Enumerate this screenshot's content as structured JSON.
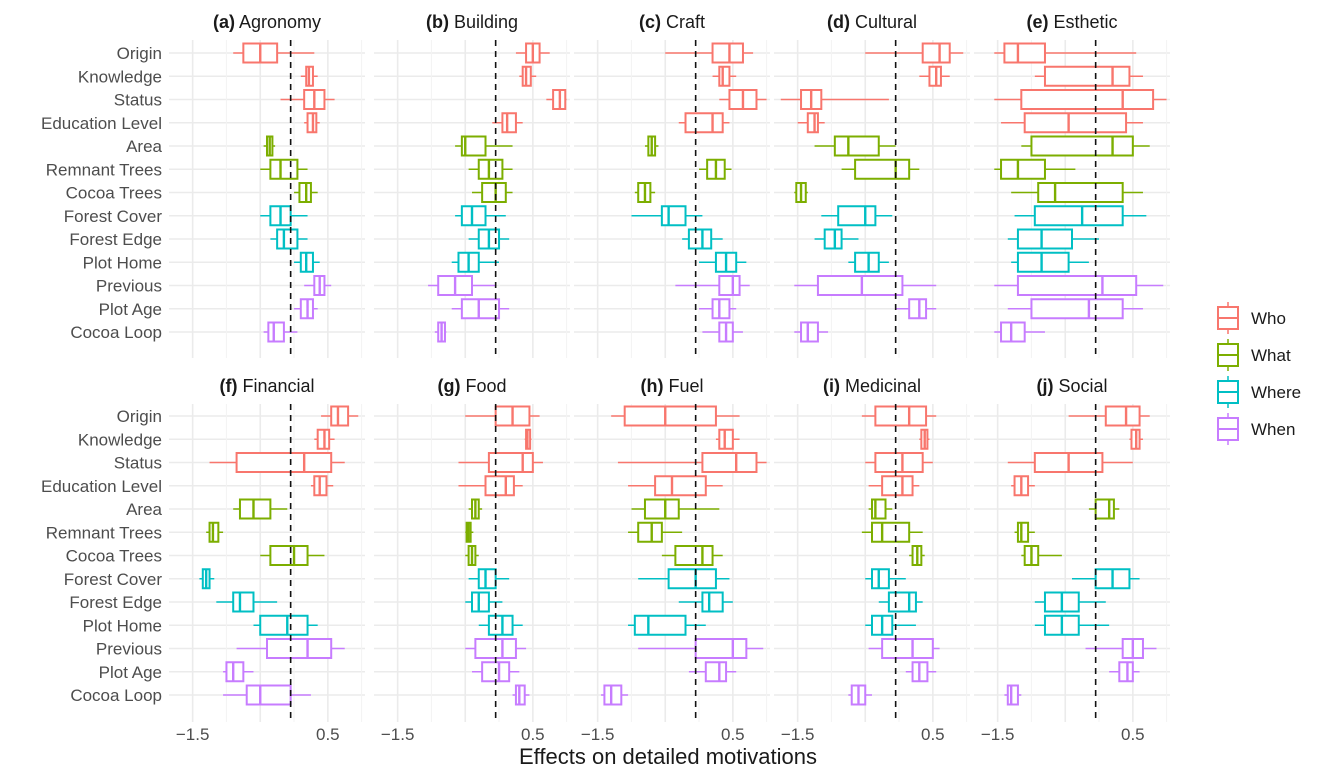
{
  "chart_data": {
    "type": "boxplot",
    "xlabel": "Effects on detailed motivations",
    "x_ticks": [
      "-1.5",
      "0.5"
    ],
    "xlim": [
      -1.85,
      1.05
    ],
    "reference_line_x": -0.05,
    "variables": [
      "Origin",
      "Knowledge",
      "Status",
      "Education Level",
      "Area",
      "Remnant Trees",
      "Cocoa Trees",
      "Forest Cover",
      "Forest Edge",
      "Plot Home",
      "Previous",
      "Plot Age",
      "Cocoa Loop"
    ],
    "groups": [
      {
        "name": "Who",
        "color": "#F8766D"
      },
      {
        "name": "What",
        "color": "#7CAE00"
      },
      {
        "name": "Where",
        "color": "#00BFC4"
      },
      {
        "name": "When",
        "color": "#C77CFF"
      }
    ],
    "variable_group": [
      "Who",
      "Who",
      "Who",
      "Who",
      "What",
      "What",
      "What",
      "Where",
      "Where",
      "Where",
      "When",
      "When",
      "When"
    ],
    "box_fields": [
      "whisker_low",
      "q1",
      "median",
      "q3",
      "whisker_high"
    ],
    "panels": [
      {
        "tag": "(a)",
        "name": "Agronomy",
        "boxes": [
          [
            -0.9,
            -0.75,
            -0.5,
            -0.25,
            0.3
          ],
          [
            0.1,
            0.18,
            0.22,
            0.28,
            0.35
          ],
          [
            -0.2,
            0.15,
            0.3,
            0.45,
            0.6
          ],
          [
            0.15,
            0.2,
            0.28,
            0.33,
            0.38
          ],
          [
            -0.45,
            -0.4,
            -0.36,
            -0.32,
            -0.28
          ],
          [
            -0.5,
            -0.35,
            -0.2,
            0.05,
            0.2
          ],
          [
            0.0,
            0.08,
            0.18,
            0.25,
            0.35
          ],
          [
            -0.5,
            -0.35,
            -0.2,
            -0.05,
            0.2
          ],
          [
            -0.35,
            -0.25,
            -0.15,
            0.05,
            0.2
          ],
          [
            0.0,
            0.1,
            0.18,
            0.28,
            0.38
          ],
          [
            0.15,
            0.3,
            0.38,
            0.45,
            0.55
          ],
          [
            0.0,
            0.1,
            0.2,
            0.28,
            0.35
          ],
          [
            -0.45,
            -0.38,
            -0.3,
            -0.15,
            0.05
          ]
        ]
      },
      {
        "tag": "(b)",
        "name": "Building",
        "boxes": [
          [
            0.25,
            0.4,
            0.5,
            0.6,
            0.75
          ],
          [
            0.3,
            0.35,
            0.4,
            0.47,
            0.55
          ],
          [
            0.7,
            0.8,
            0.9,
            0.98,
            1.0
          ],
          [
            -0.1,
            0.05,
            0.12,
            0.25,
            0.35
          ],
          [
            -0.65,
            -0.55,
            -0.5,
            -0.2,
            0.2
          ],
          [
            -0.45,
            -0.3,
            -0.15,
            0.05,
            0.2
          ],
          [
            -0.4,
            -0.25,
            -0.05,
            0.1,
            0.2
          ],
          [
            -0.65,
            -0.55,
            -0.4,
            -0.2,
            0.1
          ],
          [
            -0.45,
            -0.3,
            -0.15,
            0.0,
            0.15
          ],
          [
            -0.7,
            -0.6,
            -0.45,
            -0.3,
            0.0
          ],
          [
            -1.05,
            -0.9,
            -0.65,
            -0.4,
            -0.05
          ],
          [
            -0.7,
            -0.55,
            -0.3,
            0.0,
            0.15
          ],
          [
            -0.95,
            -0.9,
            -0.85,
            -0.8,
            -0.78
          ]
        ]
      },
      {
        "tag": "(c)",
        "name": "Craft",
        "boxes": [
          [
            -0.5,
            0.2,
            0.45,
            0.65,
            0.8
          ],
          [
            0.2,
            0.3,
            0.35,
            0.45,
            0.55
          ],
          [
            0.3,
            0.45,
            0.65,
            0.85,
            1.0
          ],
          [
            -0.3,
            -0.2,
            0.2,
            0.35,
            0.45
          ],
          [
            -0.8,
            -0.75,
            -0.7,
            -0.65,
            -0.6
          ],
          [
            0.0,
            0.12,
            0.25,
            0.38,
            0.48
          ],
          [
            -0.95,
            -0.9,
            -0.8,
            -0.72,
            -0.65
          ],
          [
            -1.0,
            -0.55,
            -0.45,
            -0.2,
            0.05
          ],
          [
            -0.25,
            -0.15,
            0.05,
            0.18,
            0.35
          ],
          [
            0.0,
            0.25,
            0.4,
            0.55,
            0.7
          ],
          [
            -0.35,
            0.3,
            0.5,
            0.6,
            0.75
          ],
          [
            0.0,
            0.2,
            0.3,
            0.45,
            0.55
          ],
          [
            0.05,
            0.3,
            0.4,
            0.5,
            0.65
          ]
        ]
      },
      {
        "tag": "(d)",
        "name": "Cultural",
        "boxes": [
          [
            -0.5,
            0.35,
            0.6,
            0.75,
            0.95
          ],
          [
            0.3,
            0.45,
            0.55,
            0.62,
            0.75
          ],
          [
            -1.75,
            -1.45,
            -1.3,
            -1.15,
            -0.15
          ],
          [
            -1.5,
            -1.35,
            -1.25,
            -1.2,
            -1.1
          ],
          [
            -1.25,
            -0.95,
            -0.75,
            -0.3,
            -0.05
          ],
          [
            -0.85,
            -0.65,
            -0.05,
            0.15,
            0.3
          ],
          [
            -1.55,
            -1.52,
            -1.45,
            -1.38,
            -1.35
          ],
          [
            -1.15,
            -0.9,
            -0.5,
            -0.35,
            -0.1
          ],
          [
            -1.25,
            -1.1,
            -0.95,
            -0.85,
            -0.6
          ],
          [
            -0.75,
            -0.65,
            -0.45,
            -0.3,
            -0.15
          ],
          [
            -1.55,
            -1.2,
            -0.55,
            0.05,
            0.55
          ],
          [
            -0.05,
            0.15,
            0.3,
            0.4,
            0.55
          ],
          [
            -1.55,
            -1.45,
            -1.35,
            -1.2,
            -1.05
          ]
        ]
      },
      {
        "tag": "(e)",
        "name": "Esthetic",
        "boxes": [
          [
            -1.55,
            -1.4,
            -1.2,
            -0.8,
            0.55
          ],
          [
            -0.95,
            -0.8,
            0.2,
            0.45,
            0.65
          ],
          [
            -1.55,
            -1.15,
            0.35,
            0.8,
            1.0
          ],
          [
            -1.45,
            -1.1,
            -0.45,
            0.4,
            0.65
          ],
          [
            -1.15,
            -1.0,
            0.2,
            0.5,
            0.75
          ],
          [
            -1.55,
            -1.45,
            -1.2,
            -0.8,
            -0.35
          ],
          [
            -1.3,
            -0.9,
            -0.65,
            0.35,
            0.65
          ],
          [
            -1.25,
            -0.95,
            -0.25,
            0.35,
            0.7
          ],
          [
            -1.35,
            -1.2,
            -0.85,
            -0.4,
            0.0
          ],
          [
            -1.3,
            -1.2,
            -0.85,
            -0.45,
            -0.15
          ],
          [
            -1.55,
            -1.2,
            0.05,
            0.55,
            0.95
          ],
          [
            -1.35,
            -1.0,
            -0.15,
            0.35,
            0.65
          ],
          [
            -1.55,
            -1.45,
            -1.3,
            -1.1,
            -0.8
          ]
        ]
      },
      {
        "tag": "(f)",
        "name": "Financial",
        "boxes": [
          [
            0.4,
            0.55,
            0.65,
            0.8,
            0.95
          ],
          [
            0.3,
            0.35,
            0.45,
            0.52,
            0.6
          ],
          [
            -1.25,
            -0.85,
            0.15,
            0.55,
            0.75
          ],
          [
            0.25,
            0.3,
            0.38,
            0.48,
            0.58
          ],
          [
            -0.9,
            -0.8,
            -0.6,
            -0.35,
            -0.1
          ],
          [
            -1.3,
            -1.25,
            -1.2,
            -1.12,
            -1.05
          ],
          [
            -0.5,
            -0.35,
            0.0,
            0.2,
            0.45
          ],
          [
            -1.4,
            -1.35,
            -1.3,
            -1.25,
            -1.18
          ],
          [
            -1.15,
            -0.9,
            -0.8,
            -0.6,
            -0.25
          ],
          [
            -0.6,
            -0.5,
            -0.1,
            0.2,
            0.35
          ],
          [
            -0.85,
            -0.4,
            0.2,
            0.55,
            0.75
          ],
          [
            -1.05,
            -1.0,
            -0.9,
            -0.75,
            -0.6
          ],
          [
            -1.05,
            -0.7,
            -0.5,
            -0.05,
            0.25
          ]
        ]
      },
      {
        "tag": "(g)",
        "name": "Food",
        "boxes": [
          [
            -0.5,
            -0.05,
            0.2,
            0.45,
            0.6
          ],
          [
            0.38,
            0.4,
            0.42,
            0.46,
            0.48
          ],
          [
            -0.6,
            -0.15,
            0.35,
            0.5,
            0.65
          ],
          [
            -0.6,
            -0.2,
            0.1,
            0.22,
            0.35
          ],
          [
            -0.45,
            -0.4,
            -0.35,
            -0.3,
            -0.25
          ],
          [
            -0.5,
            -0.48,
            -0.45,
            -0.42,
            -0.38
          ],
          [
            -0.5,
            -0.45,
            -0.4,
            -0.35,
            -0.3
          ],
          [
            -0.45,
            -0.3,
            -0.2,
            -0.05,
            0.15
          ],
          [
            -0.5,
            -0.4,
            -0.3,
            -0.15,
            0.05
          ],
          [
            -0.3,
            -0.15,
            0.05,
            0.2,
            0.35
          ],
          [
            -0.5,
            -0.35,
            0.05,
            0.25,
            0.4
          ],
          [
            -0.4,
            -0.25,
            0.0,
            0.15,
            0.3
          ],
          [
            0.2,
            0.25,
            0.3,
            0.38,
            0.45
          ]
        ]
      },
      {
        "tag": "(h)",
        "name": "Fuel",
        "boxes": [
          [
            -1.3,
            -1.1,
            -0.5,
            0.25,
            0.6
          ],
          [
            0.25,
            0.3,
            0.38,
            0.5,
            0.6
          ],
          [
            -1.2,
            0.05,
            0.55,
            0.85,
            1.0
          ],
          [
            -1.05,
            -0.65,
            -0.4,
            0.1,
            0.35
          ],
          [
            -1.0,
            -0.8,
            -0.5,
            -0.3,
            0.3
          ],
          [
            -1.05,
            -0.9,
            -0.7,
            -0.55,
            -0.25
          ],
          [
            -0.55,
            -0.35,
            0.05,
            0.2,
            0.35
          ],
          [
            -0.9,
            -0.45,
            -0.05,
            0.25,
            0.45
          ],
          [
            -0.3,
            0.05,
            0.15,
            0.35,
            0.5
          ],
          [
            -1.05,
            -0.95,
            -0.75,
            -0.2,
            0.1
          ],
          [
            -0.9,
            -0.05,
            0.5,
            0.7,
            0.95
          ],
          [
            -0.15,
            0.1,
            0.3,
            0.4,
            0.55
          ],
          [
            -1.45,
            -1.4,
            -1.3,
            -1.15,
            -1.05
          ]
        ]
      },
      {
        "tag": "(i)",
        "name": "Medicinal",
        "boxes": [
          [
            -0.55,
            -0.35,
            0.15,
            0.4,
            0.55
          ],
          [
            0.3,
            0.33,
            0.38,
            0.42,
            0.45
          ],
          [
            -0.5,
            -0.35,
            0.05,
            0.35,
            0.5
          ],
          [
            -0.45,
            -0.25,
            0.05,
            0.2,
            0.3
          ],
          [
            -0.45,
            -0.4,
            -0.35,
            -0.2,
            -0.1
          ],
          [
            -0.55,
            -0.4,
            -0.25,
            0.15,
            0.35
          ],
          [
            0.15,
            0.2,
            0.27,
            0.33,
            0.38
          ],
          [
            -0.5,
            -0.4,
            -0.3,
            -0.15,
            0.1
          ],
          [
            -0.3,
            -0.15,
            0.15,
            0.25,
            0.35
          ],
          [
            -0.5,
            -0.4,
            -0.25,
            -0.1,
            0.25
          ],
          [
            -0.45,
            -0.25,
            0.2,
            0.5,
            0.6
          ],
          [
            0.1,
            0.2,
            0.3,
            0.42,
            0.55
          ],
          [
            -0.75,
            -0.7,
            -0.6,
            -0.5,
            -0.4
          ]
        ]
      },
      {
        "tag": "(j)",
        "name": "Social",
        "boxes": [
          [
            -0.45,
            0.1,
            0.4,
            0.6,
            0.75
          ],
          [
            0.45,
            0.48,
            0.55,
            0.6,
            0.65
          ],
          [
            -1.35,
            -0.95,
            -0.45,
            0.05,
            0.5
          ],
          [
            -1.3,
            -1.25,
            -1.15,
            -1.05,
            -0.95
          ],
          [
            -0.15,
            -0.05,
            0.15,
            0.22,
            0.3
          ],
          [
            -1.25,
            -1.2,
            -1.15,
            -1.05,
            -0.95
          ],
          [
            -1.15,
            -1.1,
            -1.0,
            -0.9,
            -0.55
          ],
          [
            -0.4,
            -0.05,
            0.2,
            0.45,
            0.6
          ],
          [
            -0.95,
            -0.8,
            -0.55,
            -0.3,
            0.1
          ],
          [
            -0.95,
            -0.8,
            -0.55,
            -0.3,
            0.15
          ],
          [
            -0.2,
            0.35,
            0.5,
            0.65,
            0.85
          ],
          [
            0.15,
            0.3,
            0.42,
            0.5,
            0.6
          ],
          [
            -1.4,
            -1.35,
            -1.3,
            -1.2,
            -1.15
          ]
        ]
      }
    ]
  }
}
